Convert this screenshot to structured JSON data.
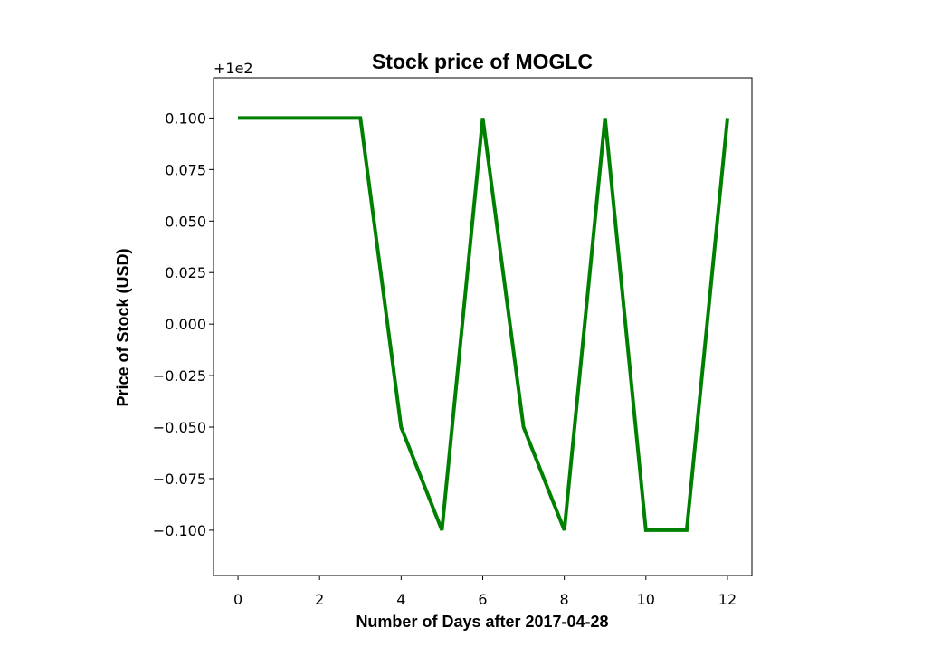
{
  "chart_data": {
    "type": "line",
    "title": "Stock price of MOGLC",
    "xlabel": "Number of Days after 2017-04-28",
    "ylabel": "Price of Stock (USD)",
    "y_offset_label": "+1e2",
    "xlim": [
      -0.6,
      12.6
    ],
    "ylim": [
      -0.122,
      0.1195
    ],
    "x_ticks": [
      0,
      2,
      4,
      6,
      8,
      10,
      12
    ],
    "x_tick_labels": [
      "0",
      "2",
      "4",
      "6",
      "8",
      "10",
      "12"
    ],
    "y_ticks": [
      0.1,
      0.075,
      0.05,
      0.025,
      0.0,
      -0.025,
      -0.05,
      -0.075,
      -0.1
    ],
    "y_tick_labels": [
      "0.100",
      "0.075",
      "0.050",
      "0.025",
      "0.000",
      "−0.025",
      "−0.050",
      "−0.075",
      "−0.100"
    ],
    "grid": false,
    "series": [
      {
        "color": "#008000",
        "x": [
          0,
          1,
          2,
          3,
          4,
          5,
          6,
          7,
          8,
          9,
          10,
          11,
          12
        ],
        "y": [
          0.1,
          0.1,
          0.1,
          0.1,
          -0.05,
          -0.1,
          0.1,
          -0.05,
          -0.1,
          0.1,
          -0.1,
          -0.1,
          0.1
        ]
      }
    ]
  }
}
